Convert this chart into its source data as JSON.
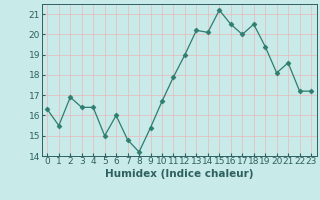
{
  "x": [
    0,
    1,
    2,
    3,
    4,
    5,
    6,
    7,
    8,
    9,
    10,
    11,
    12,
    13,
    14,
    15,
    16,
    17,
    18,
    19,
    20,
    21,
    22,
    23
  ],
  "y": [
    16.3,
    15.5,
    16.9,
    16.4,
    16.4,
    15.0,
    16.0,
    14.8,
    14.2,
    15.4,
    16.7,
    17.9,
    19.0,
    20.2,
    20.1,
    21.2,
    20.5,
    20.0,
    20.5,
    19.4,
    18.1,
    18.6,
    17.2,
    17.2
  ],
  "line_color": "#2e7d6e",
  "marker": "D",
  "marker_size": 2.5,
  "bg_color": "#c8eae8",
  "grid_color": "#e8b8b8",
  "xlabel": "Humidex (Indice chaleur)",
  "ylim": [
    14,
    21.5
  ],
  "xlim": [
    -0.5,
    23.5
  ],
  "yticks": [
    14,
    15,
    16,
    17,
    18,
    19,
    20,
    21
  ],
  "xticks": [
    0,
    1,
    2,
    3,
    4,
    5,
    6,
    7,
    8,
    9,
    10,
    11,
    12,
    13,
    14,
    15,
    16,
    17,
    18,
    19,
    20,
    21,
    22,
    23
  ],
  "tick_fontsize": 6.5,
  "xlabel_fontsize": 7.5,
  "tick_color": "#2e6060"
}
